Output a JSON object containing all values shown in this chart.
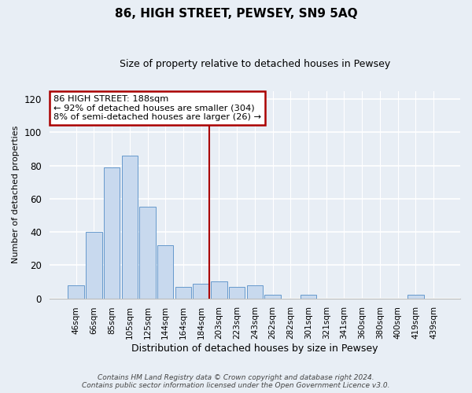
{
  "title": "86, HIGH STREET, PEWSEY, SN9 5AQ",
  "subtitle": "Size of property relative to detached houses in Pewsey",
  "xlabel": "Distribution of detached houses by size in Pewsey",
  "ylabel": "Number of detached properties",
  "bar_labels": [
    "46sqm",
    "66sqm",
    "85sqm",
    "105sqm",
    "125sqm",
    "144sqm",
    "164sqm",
    "184sqm",
    "203sqm",
    "223sqm",
    "243sqm",
    "262sqm",
    "282sqm",
    "301sqm",
    "321sqm",
    "341sqm",
    "360sqm",
    "380sqm",
    "400sqm",
    "419sqm",
    "439sqm"
  ],
  "bar_values": [
    8,
    40,
    79,
    86,
    55,
    32,
    7,
    9,
    10,
    7,
    8,
    2,
    0,
    2,
    0,
    0,
    0,
    0,
    0,
    2,
    0
  ],
  "bar_color": "#c8d9ee",
  "bar_edge_color": "#6699cc",
  "vline_x_index": 7,
  "vline_color": "#aa0000",
  "annotation_line1": "86 HIGH STREET: 188sqm",
  "annotation_line2": "← 92% of detached houses are smaller (304)",
  "annotation_line3": "8% of semi-detached houses are larger (26) →",
  "annotation_box_color": "#ffffff",
  "annotation_box_edge": "#aa0000",
  "ylim": [
    0,
    125
  ],
  "yticks": [
    0,
    20,
    40,
    60,
    80,
    100,
    120
  ],
  "footer_line1": "Contains HM Land Registry data © Crown copyright and database right 2024.",
  "footer_line2": "Contains public sector information licensed under the Open Government Licence v3.0.",
  "bg_color": "#e8eef5",
  "title_fontsize": 11,
  "subtitle_fontsize": 9,
  "ylabel_fontsize": 8,
  "xlabel_fontsize": 9
}
